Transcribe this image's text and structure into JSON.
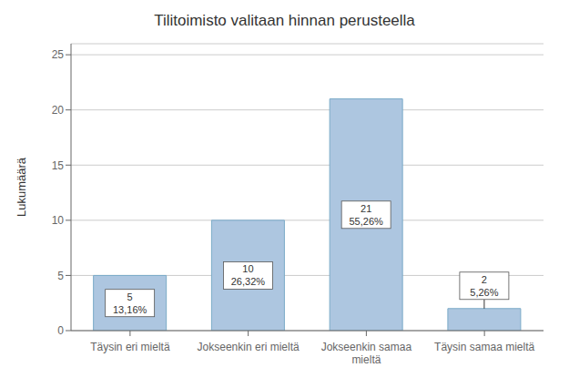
{
  "chart_data": {
    "type": "bar",
    "title": "Tilitoimisto valitaan hinnan perusteella",
    "categories": [
      "Täysin eri mieltä",
      "Jokseenkin eri mieltä",
      "Jokseenkin samaa\nmieltä",
      "Täysin samaa mieltä"
    ],
    "values": [
      5,
      10,
      21,
      2
    ],
    "percentages": [
      "13,16%",
      "26,32%",
      "55,26%",
      "5,26%"
    ],
    "data_labels": true,
    "color": "#adc6e0",
    "ylabel": "Lukumäärä",
    "ylim": [
      0,
      26
    ],
    "yticks": [
      0,
      5,
      10,
      15,
      20,
      25
    ],
    "grid": true
  }
}
